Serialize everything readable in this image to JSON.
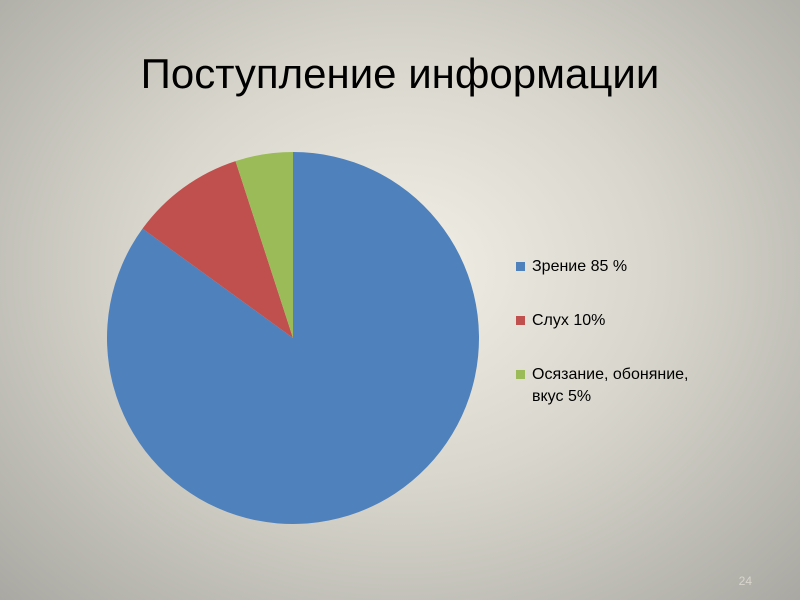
{
  "chart_data": {
    "type": "pie",
    "title": "Поступление информации",
    "categories": [
      "Зрение 85 %",
      "Слух 10%",
      "Осязание, обоняние, вкус 5%"
    ],
    "values": [
      85,
      10,
      5
    ],
    "colors": [
      "#4f81bd",
      "#c0504d",
      "#9bbb59"
    ],
    "legend": "right"
  },
  "slide_number": "24"
}
